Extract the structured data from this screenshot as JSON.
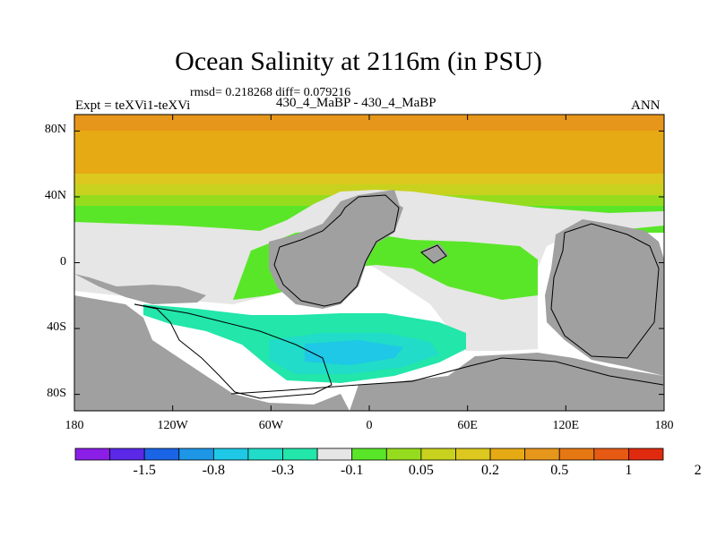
{
  "chart_data": {
    "type": "heatmap",
    "title": "Ocean Salinity at 2116m (in PSU)",
    "stats_text": "rmsd= 0.218268  diff= 0.079216",
    "subtitle": "430_4_MaBP - 430_4_MaBP",
    "left_label": "Expt = teXVi1-teXVi",
    "right_label": "ANN",
    "units": "PSU",
    "depth": "2116m",
    "rmsd": 0.218268,
    "diff": 0.079216,
    "lon_range": [
      -180,
      180
    ],
    "lat_range": [
      -90,
      90
    ],
    "x_ticks": [
      "180",
      "120W",
      "60W",
      "0",
      "60E",
      "120E",
      "180"
    ],
    "x_tick_values": [
      -180,
      -120,
      -60,
      0,
      60,
      120,
      180
    ],
    "y_ticks": [
      "80N",
      "40N",
      "0",
      "40S",
      "80S"
    ],
    "y_tick_values": [
      80,
      40,
      0,
      -40,
      -80
    ],
    "colorbar": {
      "colors": [
        "#8a1ee6",
        "#5a28e6",
        "#1a64e6",
        "#1e96e6",
        "#1ec8e6",
        "#20dcc8",
        "#22e6aa",
        "#e6e6e6",
        "#5ae628",
        "#96dc1e",
        "#c8d21e",
        "#dcc81e",
        "#e6aa14",
        "#e6961a",
        "#e67814",
        "#e65a14",
        "#e02a10"
      ],
      "labels": [
        "-1.5",
        "-0.8",
        "-0.3",
        "-0.1",
        "0.05",
        "0.2",
        "0.5",
        "1",
        "2"
      ]
    }
  }
}
